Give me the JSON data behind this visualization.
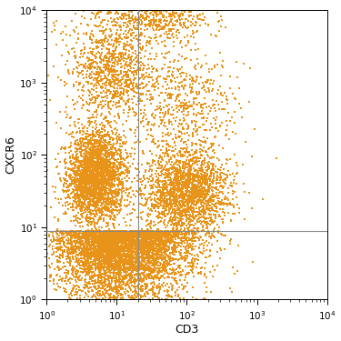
{
  "title": "",
  "xlabel": "CD3",
  "ylabel": "CXCR6",
  "xlim": [
    1,
    10000
  ],
  "ylim": [
    1,
    10000
  ],
  "dot_color": "#E8941A",
  "dot_size": 2.5,
  "dot_alpha": 1.0,
  "quadrant_vline_x": 20,
  "quadrant_hline_y": 9.0,
  "background_color": "#ffffff",
  "n_points": 12000,
  "seed": 77
}
